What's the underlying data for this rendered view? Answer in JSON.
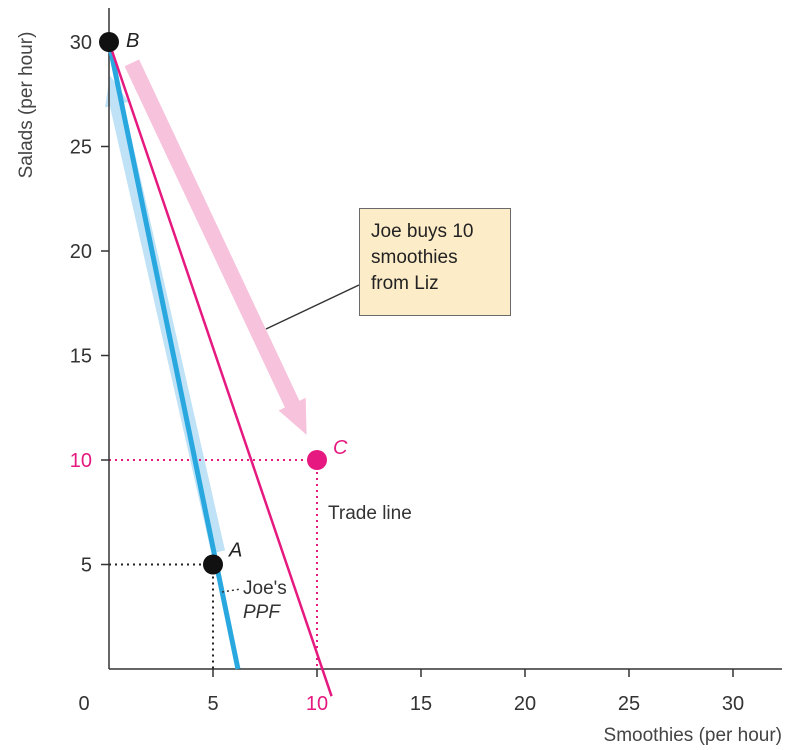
{
  "chart_data": {
    "type": "line",
    "title": "",
    "xlabel": "Smoothies (per hour)",
    "ylabel": "Salads (per hour)",
    "xlim": [
      0,
      32.5
    ],
    "ylim": [
      0,
      31
    ],
    "x_ticks": [
      "0",
      "5",
      "10",
      "15",
      "20",
      "25",
      "30"
    ],
    "y_ticks": [
      "5",
      "10",
      "15",
      "20",
      "25",
      "30"
    ],
    "highlighted_ticks": {
      "x": "10",
      "y": "10"
    },
    "grid": false,
    "series": [
      {
        "label": "Joe's PPF",
        "label_line1": "Joe's",
        "label_line2": "PPF",
        "color": "#29a8e0",
        "points": [
          [
            0,
            30
          ],
          [
            6.2,
            0
          ]
        ]
      },
      {
        "label": "Trade line",
        "color": "#e5197f",
        "points": [
          [
            0,
            30
          ],
          [
            10.7,
            -1.3
          ]
        ]
      }
    ],
    "points": [
      {
        "label": "A",
        "x": 5,
        "y": 5,
        "color": "#111111"
      },
      {
        "label": "B",
        "x": 0,
        "y": 30,
        "color": "#111111"
      },
      {
        "label": "C",
        "x": 10,
        "y": 10,
        "color": "#e5197f"
      }
    ],
    "callout": {
      "lines": [
        "Joe buys 10",
        "smoothies",
        "from Liz"
      ]
    }
  }
}
